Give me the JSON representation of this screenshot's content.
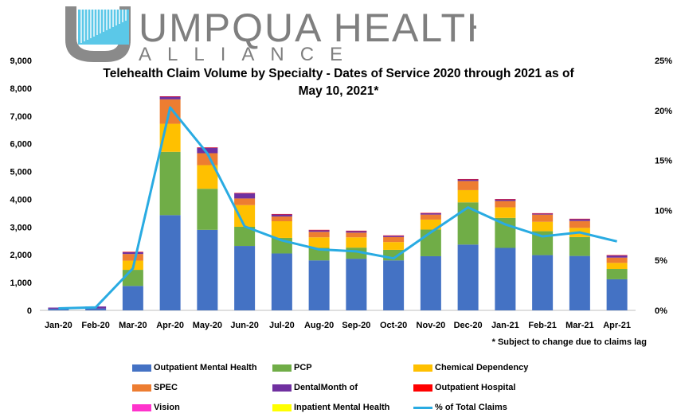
{
  "logo": {
    "line1": "UMPQUA HEALTH",
    "line2": "ALLIANCE"
  },
  "title": {
    "line1": "Telehealth Claim Volume by Specialty - Dates of Service 2020 through 2021 as of",
    "line2": "May 10, 2021*"
  },
  "footnote": "* Subject to change due to claims lag",
  "chart_data": {
    "type": "bar",
    "stacked": true,
    "categories": [
      "Jan-20",
      "Feb-20",
      "Mar-20",
      "Apr-20",
      "May-20",
      "Jun-20",
      "Jul-20",
      "Aug-20",
      "Sep-20",
      "Oct-20",
      "Nov-20",
      "Dec-20",
      "Jan-21",
      "Feb-21",
      "Mar-21",
      "Apr-21"
    ],
    "y_left": {
      "min": 0,
      "max": 9000,
      "step": 1000,
      "tick_labels": [
        "0",
        "1,000",
        "2,000",
        "3,000",
        "4,000",
        "5,000",
        "6,000",
        "7,000",
        "8,000",
        "9,000"
      ]
    },
    "y_right": {
      "min": 0,
      "max": 25,
      "step": 5,
      "tick_labels": [
        "0%",
        "5%",
        "10%",
        "15%",
        "20%",
        "25%"
      ]
    },
    "grid": false,
    "legend_position": "bottom",
    "series": [
      {
        "name": "Outpatient Mental Health",
        "color": "#4472c4",
        "axis": "left",
        "values": [
          60,
          70,
          880,
          3430,
          2900,
          2320,
          2050,
          1800,
          1860,
          1800,
          1950,
          2370,
          2250,
          1990,
          1960,
          1120
        ]
      },
      {
        "name": "PCP",
        "color": "#70ad47",
        "axis": "left",
        "values": [
          0,
          0,
          580,
          2280,
          1480,
          690,
          560,
          450,
          400,
          380,
          960,
          1520,
          1080,
          860,
          680,
          370
        ]
      },
      {
        "name": "Chemical Dependency",
        "color": "#ffc000",
        "axis": "left",
        "values": [
          0,
          0,
          330,
          1010,
          850,
          780,
          600,
          380,
          370,
          280,
          360,
          440,
          380,
          340,
          330,
          220
        ]
      },
      {
        "name": "SPEC",
        "color": "#ed7d31",
        "axis": "left",
        "values": [
          0,
          0,
          240,
          880,
          430,
          240,
          170,
          200,
          170,
          180,
          180,
          330,
          230,
          260,
          250,
          190
        ]
      },
      {
        "name": "DentalMonth of",
        "color": "#7030a0",
        "axis": "left",
        "values": [
          40,
          70,
          70,
          100,
          200,
          190,
          80,
          60,
          60,
          50,
          50,
          60,
          60,
          40,
          70,
          80
        ]
      },
      {
        "name": "Outpatient Hospital",
        "color": "#ff0000",
        "axis": "left",
        "values": [
          0,
          0,
          10,
          10,
          10,
          10,
          10,
          10,
          10,
          10,
          10,
          10,
          10,
          10,
          10,
          10
        ]
      },
      {
        "name": "Vision",
        "color": "#ff33cc",
        "axis": "left",
        "values": [
          0,
          0,
          0,
          0,
          0,
          0,
          0,
          0,
          0,
          0,
          0,
          0,
          0,
          0,
          0,
          0
        ]
      },
      {
        "name": "Inpatient Mental Health",
        "color": "#ffff00",
        "axis": "left",
        "values": [
          0,
          0,
          0,
          0,
          0,
          0,
          0,
          0,
          0,
          0,
          0,
          0,
          0,
          0,
          0,
          0
        ]
      },
      {
        "name": "% of Total Claims",
        "color": "#29abe2",
        "type": "line",
        "axis": "right",
        "values": [
          0.2,
          0.3,
          4.2,
          20.3,
          15.7,
          8.4,
          7.0,
          6.1,
          5.9,
          5.2,
          7.8,
          10.3,
          8.6,
          7.4,
          7.8,
          6.9
        ]
      }
    ]
  }
}
